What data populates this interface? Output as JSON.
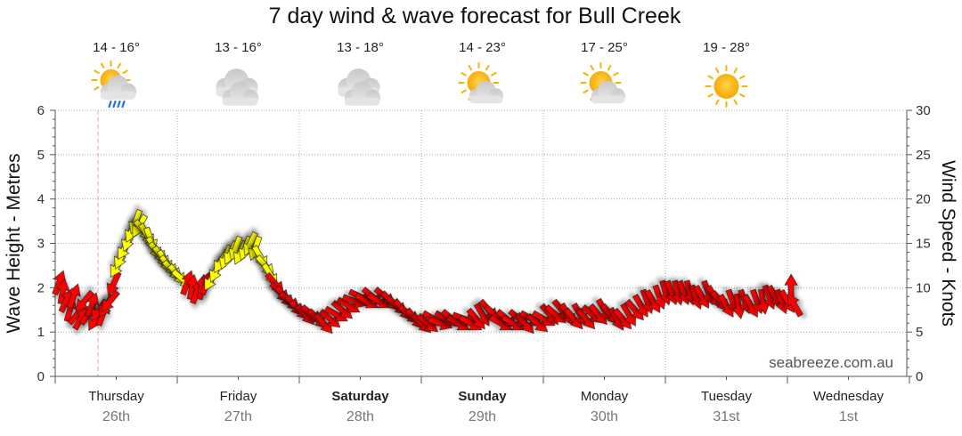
{
  "title": "7 day wind & wave forecast for Bull Creek",
  "watermark": "seabreeze.com.au",
  "colors": {
    "wind_strong": "#ffff00",
    "wind_light": "#ff0000",
    "grid": "#999999",
    "now_line": "#f4a0a0"
  },
  "days": [
    {
      "name": "Thursday",
      "date": "26th",
      "bold": false,
      "temp": "14 - 16°",
      "icon": "sun-cloud-rain-icon"
    },
    {
      "name": "Friday",
      "date": "27th",
      "bold": false,
      "temp": "13 - 16°",
      "icon": "cloud-icon"
    },
    {
      "name": "Saturday",
      "date": "28th",
      "bold": true,
      "temp": "13 - 18°",
      "icon": "cloud-icon"
    },
    {
      "name": "Sunday",
      "date": "29th",
      "bold": true,
      "temp": "14 - 23°",
      "icon": "sun-cloud-icon"
    },
    {
      "name": "Monday",
      "date": "30th",
      "bold": false,
      "temp": "17 - 25°",
      "icon": "sun-cloud-icon"
    },
    {
      "name": "Tuesday",
      "date": "31st",
      "bold": false,
      "temp": "19 - 28°",
      "icon": "sun-icon"
    },
    {
      "name": "Wednesday",
      "date": "1st",
      "bold": false,
      "temp": "",
      "icon": ""
    }
  ],
  "chart_data": {
    "type": "line",
    "title": "7 day wind & wave forecast for Bull Creek",
    "left_axis": {
      "label": "Wave Height - Metres",
      "range": [
        0,
        6
      ],
      "ticks": [
        0,
        1,
        2,
        3,
        4,
        5,
        6
      ]
    },
    "right_axis": {
      "label": "Wind Speed - Knots",
      "range": [
        0,
        30
      ],
      "ticks": [
        0,
        5,
        10,
        15,
        20,
        25,
        30
      ]
    },
    "x_axis": {
      "range_days": [
        0,
        7
      ],
      "categories": [
        "Thursday 26th",
        "Friday 27th",
        "Saturday 28th",
        "Sunday 29th",
        "Monday 30th",
        "Tuesday 31st",
        "Wednesday 1st"
      ]
    },
    "grid": true,
    "series": [
      {
        "name": "Wind Speed - Knots",
        "marker": "wind-direction-arrow",
        "points": [
          [
            0.03,
            10.5,
            200
          ],
          [
            0.06,
            9.5,
            190
          ],
          [
            0.09,
            8.5,
            205
          ],
          [
            0.12,
            7.5,
            195
          ],
          [
            0.15,
            9,
            200
          ],
          [
            0.18,
            7,
            220
          ],
          [
            0.21,
            6.5,
            210
          ],
          [
            0.24,
            8.5,
            40
          ],
          [
            0.27,
            7,
            215
          ],
          [
            0.3,
            8,
            200
          ],
          [
            0.33,
            6.5,
            30
          ],
          [
            0.36,
            7.5,
            35
          ],
          [
            0.39,
            7,
            200
          ],
          [
            0.42,
            8,
            30
          ],
          [
            0.45,
            8.5,
            40
          ],
          [
            0.48,
            10.5,
            25
          ],
          [
            0.51,
            12.5,
            30
          ],
          [
            0.54,
            13.5,
            25
          ],
          [
            0.57,
            14.5,
            30
          ],
          [
            0.6,
            15.5,
            20
          ],
          [
            0.63,
            16.5,
            25
          ],
          [
            0.66,
            17.5,
            20
          ],
          [
            0.69,
            17,
            30
          ],
          [
            0.72,
            16.5,
            320
          ],
          [
            0.75,
            16,
            330
          ],
          [
            0.78,
            15.5,
            340
          ],
          [
            0.81,
            14.5,
            330
          ],
          [
            0.84,
            14,
            320
          ],
          [
            0.87,
            13.5,
            325
          ],
          [
            0.9,
            13,
            330
          ],
          [
            0.93,
            12.5,
            320
          ],
          [
            0.96,
            12,
            315
          ],
          [
            1.0,
            11.5,
            320
          ],
          [
            1.04,
            11,
            310
          ],
          [
            1.08,
            10.5,
            200
          ],
          [
            1.12,
            10,
            190
          ],
          [
            1.16,
            9.5,
            200
          ],
          [
            1.2,
            10,
            190
          ],
          [
            1.24,
            10.5,
            200
          ],
          [
            1.28,
            11,
            30
          ],
          [
            1.32,
            12,
            25
          ],
          [
            1.36,
            13,
            30
          ],
          [
            1.4,
            13.5,
            20
          ],
          [
            1.44,
            14,
            25
          ],
          [
            1.48,
            14.5,
            20
          ],
          [
            1.52,
            14,
            25
          ],
          [
            1.56,
            14.5,
            20
          ],
          [
            1.6,
            15,
            25
          ],
          [
            1.64,
            14.5,
            20
          ],
          [
            1.68,
            13.5,
            330
          ],
          [
            1.72,
            12.5,
            320
          ],
          [
            1.76,
            11.5,
            330
          ],
          [
            1.8,
            10.5,
            320
          ],
          [
            1.84,
            9.5,
            315
          ],
          [
            1.88,
            9,
            320
          ],
          [
            1.92,
            8.5,
            310
          ],
          [
            1.96,
            8,
            320
          ],
          [
            2.0,
            7.5,
            315
          ],
          [
            2.05,
            7,
            320
          ],
          [
            2.1,
            7,
            310
          ],
          [
            2.15,
            6.5,
            315
          ],
          [
            2.2,
            6,
            320
          ],
          [
            2.25,
            6.5,
            310
          ],
          [
            2.3,
            7,
            300
          ],
          [
            2.35,
            7.5,
            310
          ],
          [
            2.4,
            8,
            300
          ],
          [
            2.45,
            8.5,
            290
          ],
          [
            2.5,
            9,
            295
          ],
          [
            2.55,
            8.5,
            300
          ],
          [
            2.6,
            9,
            310
          ],
          [
            2.65,
            8.5,
            300
          ],
          [
            2.7,
            9,
            310
          ],
          [
            2.75,
            8.5,
            315
          ],
          [
            2.8,
            8,
            310
          ],
          [
            2.85,
            7.5,
            320
          ],
          [
            2.9,
            7,
            310
          ],
          [
            2.95,
            6.5,
            320
          ],
          [
            3.0,
            6,
            315
          ],
          [
            3.05,
            6,
            310
          ],
          [
            3.1,
            6.5,
            300
          ],
          [
            3.15,
            6,
            290
          ],
          [
            3.2,
            6.5,
            300
          ],
          [
            3.25,
            6.5,
            310
          ],
          [
            3.3,
            6,
            300
          ],
          [
            3.35,
            6.5,
            290
          ],
          [
            3.4,
            6,
            300
          ],
          [
            3.45,
            6.5,
            320
          ],
          [
            3.5,
            7,
            330
          ],
          [
            3.55,
            7.5,
            320
          ],
          [
            3.6,
            7,
            310
          ],
          [
            3.65,
            6,
            300
          ],
          [
            3.7,
            6.5,
            310
          ],
          [
            3.75,
            6,
            300
          ],
          [
            3.8,
            6.5,
            310
          ],
          [
            3.85,
            6,
            320
          ],
          [
            3.9,
            6.5,
            300
          ],
          [
            3.95,
            6,
            310
          ],
          [
            4.0,
            6.5,
            300
          ],
          [
            4.05,
            7,
            320
          ],
          [
            4.1,
            7,
            310
          ],
          [
            4.15,
            7.5,
            320
          ],
          [
            4.2,
            7,
            330
          ],
          [
            4.25,
            6.5,
            320
          ],
          [
            4.3,
            7,
            330
          ],
          [
            4.35,
            6.5,
            320
          ],
          [
            4.4,
            7,
            310
          ],
          [
            4.45,
            7,
            320
          ],
          [
            4.5,
            7.5,
            330
          ],
          [
            4.55,
            7,
            320
          ],
          [
            4.6,
            6.5,
            330
          ],
          [
            4.65,
            6.5,
            320
          ],
          [
            4.7,
            7,
            330
          ],
          [
            4.75,
            7.5,
            320
          ],
          [
            4.8,
            8,
            330
          ],
          [
            4.85,
            8.5,
            340
          ],
          [
            4.9,
            8.5,
            330
          ],
          [
            4.95,
            9,
            340
          ],
          [
            5.0,
            9.5,
            345
          ],
          [
            5.05,
            9.5,
            340
          ],
          [
            5.1,
            9.5,
            345
          ],
          [
            5.15,
            9.5,
            340
          ],
          [
            5.2,
            9.5,
            345
          ],
          [
            5.25,
            9,
            340
          ],
          [
            5.3,
            9,
            330
          ],
          [
            5.35,
            9.5,
            340
          ],
          [
            5.4,
            9,
            330
          ],
          [
            5.45,
            8.5,
            320
          ],
          [
            5.5,
            8,
            330
          ],
          [
            5.55,
            8.5,
            340
          ],
          [
            5.6,
            8,
            350
          ],
          [
            5.65,
            8.5,
            340
          ],
          [
            5.7,
            8,
            330
          ],
          [
            5.75,
            8.5,
            340
          ],
          [
            5.8,
            8.5,
            350
          ],
          [
            5.85,
            9,
            340
          ],
          [
            5.9,
            9,
            330
          ],
          [
            5.95,
            8.5,
            340
          ],
          [
            6.0,
            8.5,
            330
          ],
          [
            6.03,
            10,
            180
          ],
          [
            6.06,
            8,
            150
          ]
        ]
      }
    ],
    "annotations": [
      "current time marker near Thursday midday"
    ]
  }
}
